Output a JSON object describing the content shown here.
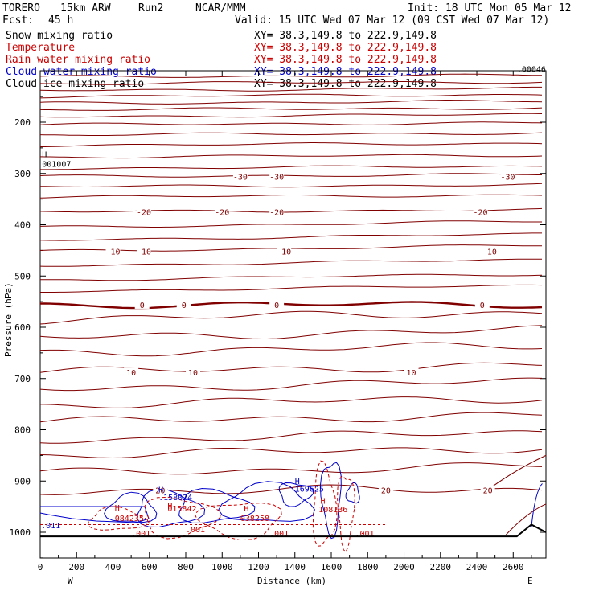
{
  "chart_data": {
    "type": "line",
    "subtype": "vertical cross-section contour plot",
    "header": {
      "model": "TORERO",
      "grid": "15km ARW",
      "run": "Run2",
      "org": "NCAR/MMM",
      "init": "Init: 18 UTC Mon 05 Mar 12",
      "fcst_label": "Fcst:",
      "fcst_value": "45 h",
      "valid": "Valid: 15 UTC Wed 07 Mar 12 (09 CST Wed 07 Mar 12)"
    },
    "legend": [
      {
        "name": "Snow mixing ratio",
        "xy": "XY=  38.3,149.8 to 222.9,149.8",
        "color": "#000000"
      },
      {
        "name": "Temperature",
        "xy": "XY=  38.3,149.8 to 222.9,149.8",
        "color": "#cc0000"
      },
      {
        "name": "Rain water mixing ratio",
        "xy": "XY=  38.3,149.8 to 222.9,149.8",
        "color": "#cc0000"
      },
      {
        "name": "Cloud water mixing ratio",
        "xy": "XY=  38.3,149.8 to 222.9,149.8",
        "color": "#0000cc"
      },
      {
        "name": "Cloud ice mixing ratio",
        "xy": "XY=  38.3,149.8 to 222.9,149.8",
        "color": "#000000"
      }
    ],
    "xlabel": "Distance (km)",
    "ylabel": "Pressure (hPa)",
    "xlim": [
      0,
      2780
    ],
    "ylim_pressure": [
      1050,
      100
    ],
    "xticks": [
      "0",
      "200",
      "400",
      "600",
      "800",
      "1000",
      "1200",
      "1400",
      "1600",
      "1800",
      "2000",
      "2200",
      "2400",
      "2600"
    ],
    "yticks": [
      "200",
      "300",
      "400",
      "500",
      "600",
      "700",
      "800",
      "900",
      "1000"
    ],
    "x_ends": {
      "west": "W",
      "east": "E"
    },
    "temperature_contours": [
      {
        "level": "0",
        "pressure": 556,
        "bold": true,
        "label_x": [
          560,
          790,
          1300,
          2430
        ]
      },
      {
        "level": "-10",
        "pressure": 452,
        "label_x": [
          400,
          570,
          1340,
          2470
        ]
      },
      {
        "level": "-20",
        "pressure": 375,
        "label_x": [
          570,
          1000,
          1300,
          2420
        ]
      },
      {
        "level": "-30",
        "pressure": 306,
        "label_x": [
          1100,
          1300,
          2570
        ]
      },
      {
        "level": "10",
        "pressure": 688,
        "label_x": [
          500,
          840,
          2040
        ]
      },
      {
        "level": "20",
        "pressure": 918,
        "label_x": [
          660,
          1900,
          2460
        ]
      }
    ],
    "snow_labels": [
      {
        "text": "H",
        "x": 10,
        "pressure": 268
      },
      {
        "text": "001007",
        "x": 10,
        "pressure": 287
      },
      {
        "text": ".00046",
        "x": 2620,
        "pressure": 102
      }
    ],
    "cloud_water_labels": [
      {
        "text": "H",
        "x": 650,
        "pressure": 922
      },
      {
        "text": ".158024",
        "x": 650,
        "pressure": 937
      },
      {
        "text": "H",
        "x": 1400,
        "pressure": 906
      },
      {
        "text": "169625",
        "x": 1400,
        "pressure": 921
      },
      {
        "text": ".011",
        "x": 5,
        "pressure": 992
      }
    ],
    "rain_labels": [
      {
        "text": "H",
        "x": 410,
        "pressure": 958
      },
      {
        "text": "084235",
        "x": 410,
        "pressure": 978
      },
      {
        "text": "H",
        "x": 700,
        "pressure": 954
      },
      {
        "text": "015842",
        "x": 700,
        "pressure": 959
      },
      {
        "text": "H",
        "x": 1120,
        "pressure": 959
      },
      {
        "text": "038258",
        "x": 1100,
        "pressure": 978
      },
      {
        "text": "H",
        "x": 1540,
        "pressure": 944
      },
      {
        "text": "108136",
        "x": 1530,
        "pressure": 961
      },
      {
        "text": ".001",
        "x": 500,
        "pressure": 1008
      },
      {
        "text": ".001",
        "x": 800,
        "pressure": 1000
      },
      {
        "text": ".001",
        "x": 1260,
        "pressure": 1008
      },
      {
        "text": ".001",
        "x": 1730,
        "pressure": 1008
      }
    ],
    "ground_pressure": 1008
  }
}
